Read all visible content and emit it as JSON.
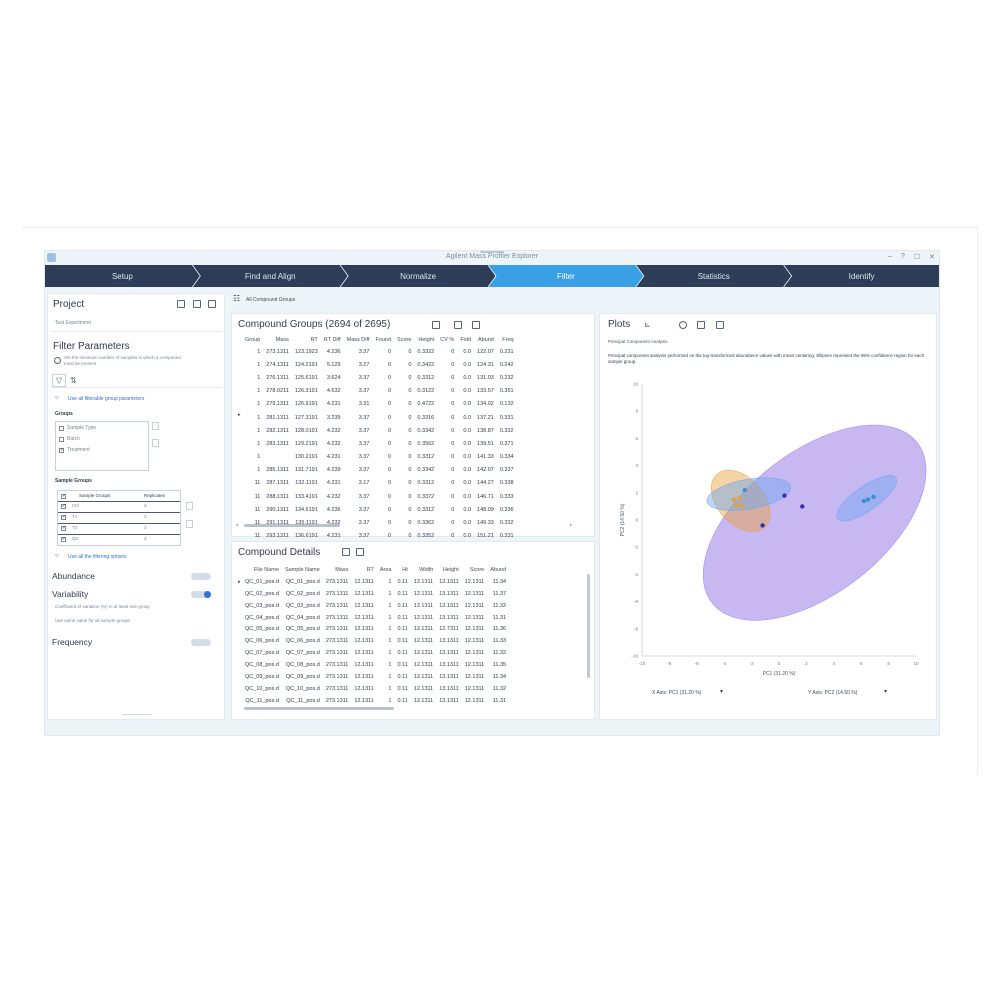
{
  "app": {
    "title": "Agilent Mass Profiler Explorer"
  },
  "window_controls": [
    "–",
    "?",
    "☐",
    "✕"
  ],
  "steps": [
    {
      "label": "Setup",
      "active": false
    },
    {
      "label": "Find and Align",
      "active": false
    },
    {
      "label": "Normalize",
      "active": false
    },
    {
      "label": "Filter",
      "active": true
    },
    {
      "label": "Statistics",
      "active": false
    },
    {
      "label": "Identify",
      "active": false
    }
  ],
  "project": {
    "title": "Project",
    "name": "Test Experiment",
    "filter_title": "Filter Parameters",
    "filter_desc": "Set the minimum number of samples in which a compound must be present",
    "group_link": "Use all filterable group parameters",
    "groups_label": "Groups",
    "groups": [
      {
        "label": "Sample Type",
        "checked": false
      },
      {
        "label": "Batch",
        "checked": false
      },
      {
        "label": "Treatment",
        "checked": true
      }
    ],
    "sample_groups_label": "Sample Groups",
    "sample_groups_header": [
      "Sample Groups",
      "Replicates"
    ],
    "sample_groups": [
      {
        "name": "Ctrl",
        "reps": "3"
      },
      {
        "name": "T1",
        "reps": "3"
      },
      {
        "name": "T2",
        "reps": "3"
      },
      {
        "name": "QC",
        "reps": "3"
      }
    ],
    "filter_link": "Use all the filtering options",
    "abundance": "Abundance",
    "variability": "Variability",
    "variability_desc": "Coefficient of variation (%) in at least one group",
    "variability_desc2": "Use same value for all sample groups",
    "frequency": "Frequency"
  },
  "filter_bar": {
    "label": "All Compound Groups"
  },
  "compound_groups": {
    "title": "Compound Groups (2694 of 2695)",
    "columns": [
      "Group",
      "Mass",
      "RT",
      "RT Diff",
      "Mass Diff",
      "Found",
      "Score",
      "Height",
      "CV %",
      "Fold",
      "Abund",
      "Freq"
    ],
    "rows": [
      [
        "1",
        "273.1311",
        "123.1923",
        "4.236",
        "3.37",
        "0",
        "0",
        "0.3322",
        "0",
        "0.0",
        "122.07",
        "0.231"
      ],
      [
        "1",
        "274.1311",
        "124.2191",
        "5.129",
        "3.27",
        "0",
        "0",
        "0.3422",
        "0",
        "0.0",
        "124.31",
        "0.242"
      ],
      [
        "1",
        "276.1311",
        "125.6191",
        "3.624",
        "3.37",
        "0",
        "0",
        "0.3312",
        "0",
        "0.0",
        "131.03",
        "0.232"
      ],
      [
        "1",
        "278.0211",
        "126.3191",
        "4.632",
        "3.37",
        "0",
        "0",
        "0.3122",
        "0",
        "0.0",
        "133.57",
        "0.351"
      ],
      [
        "1",
        "279.1311",
        "126.9191",
        "4.231",
        "3.31",
        "0",
        "0",
        "0.4722",
        "0",
        "0.0",
        "134.02",
        "0.132"
      ],
      [
        "1",
        "281.1311",
        "127.3191",
        "3.239",
        "3.37",
        "0",
        "0",
        "0.3316",
        "0",
        "0.0",
        "137.21",
        "0.331"
      ],
      [
        "1",
        "282.1311",
        "128.0191",
        "4.232",
        "3.37",
        "0",
        "0",
        "0.3342",
        "0",
        "0.0",
        "138.87",
        "0.332"
      ],
      [
        "1",
        "283.1311",
        "129.2191",
        "4.232",
        "3.37",
        "0",
        "0",
        "0.3562",
        "0",
        "0.0",
        "139.51",
        "0.371"
      ],
      [
        "1",
        "",
        "130.2191",
        "4.231",
        "3.37",
        "0",
        "0",
        "0.3312",
        "0",
        "0.0",
        "141.33",
        "0.334"
      ],
      [
        "1",
        "285.1311",
        "131.7191",
        "4.239",
        "3.37",
        "0",
        "0",
        "0.3342",
        "0",
        "0.0",
        "142.07",
        "0.337"
      ],
      [
        "11",
        "287.1311",
        "132.1191",
        "4.231",
        "3.17",
        "0",
        "0",
        "0.3312",
        "0",
        "0.0",
        "144.27",
        "0.338"
      ],
      [
        "11",
        "288.1311",
        "133.4191",
        "4.232",
        "3.37",
        "0",
        "0",
        "0.3372",
        "0",
        "0.0",
        "146.71",
        "0.333"
      ],
      [
        "11",
        "290.1311",
        "134.6191",
        "4.236",
        "3.37",
        "0",
        "0",
        "0.3312",
        "0",
        "0.0",
        "148.09",
        "0.336"
      ],
      [
        "11",
        "291.1311",
        "135.1191",
        "4.232",
        "3.37",
        "0",
        "0",
        "0.3362",
        "0",
        "0.0",
        "149.33",
        "0.332"
      ],
      [
        "11",
        "293.1311",
        "136.6191",
        "4.231",
        "3.37",
        "0",
        "0",
        "0.3352",
        "0",
        "0.0",
        "151.21",
        "0.331"
      ]
    ]
  },
  "compound_details": {
    "title": "Compound Details",
    "columns": [
      "File Name",
      "Sample Name",
      "Mass",
      "RT",
      "Area",
      "Ht",
      "Width",
      "Height",
      "Score",
      "Abund"
    ],
    "rows": [
      [
        "QC_01_pos.d",
        "QC_01_pos.d",
        "273.1311",
        "12.1311",
        "1",
        "0.11",
        "12.1311",
        "13.1311",
        "12.1311",
        "11.34"
      ],
      [
        "QC_02_pos.d",
        "QC_02_pos.d",
        "273.1311",
        "12.1311",
        "1",
        "0.11",
        "12.1311",
        "13.1311",
        "12.1311",
        "11.37"
      ],
      [
        "QC_03_pos.d",
        "QC_03_pos.d",
        "273.1311",
        "12.1311",
        "1",
        "0.11",
        "12.1311",
        "13.1311",
        "12.1311",
        "11.32"
      ],
      [
        "QC_04_pos.d",
        "QC_04_pos.d",
        "273.1311",
        "12.1311",
        "1",
        "0.11",
        "12.1311",
        "13.1311",
        "12.1311",
        "11.31"
      ],
      [
        "QC_05_pos.d",
        "QC_05_pos.d",
        "273.1311",
        "12.1311",
        "1",
        "0.11",
        "12.1311",
        "12.7311",
        "12.1311",
        "11.36"
      ],
      [
        "QC_06_pos.d",
        "QC_06_pos.d",
        "273.1311",
        "12.1311",
        "1",
        "0.11",
        "12.1311",
        "13.1311",
        "12.1311",
        "11.33"
      ],
      [
        "QC_07_pos.d",
        "QC_07_pos.d",
        "273.1311",
        "12.1311",
        "1",
        "0.11",
        "12.1311",
        "13.1311",
        "12.1311",
        "11.32"
      ],
      [
        "QC_08_pos.d",
        "QC_08_pos.d",
        "273.1311",
        "12.1311",
        "1",
        "0.11",
        "12.1311",
        "13.1311",
        "12.1311",
        "11.35"
      ],
      [
        "QC_09_pos.d",
        "QC_09_pos.d",
        "273.1311",
        "12.1311",
        "1",
        "0.11",
        "12.1311",
        "13.1311",
        "12.1311",
        "11.34"
      ],
      [
        "QC_10_pos.d",
        "QC_10_pos.d",
        "273.1311",
        "12.1311",
        "1",
        "0.11",
        "12.1311",
        "13.1311",
        "12.1311",
        "11.32"
      ],
      [
        "QC_11_pos.d",
        "QC_11_pos.d",
        "273.1311",
        "12.1311",
        "1",
        "0.11",
        "12.1311",
        "13.1311",
        "12.1311",
        "11.31"
      ]
    ]
  },
  "plots": {
    "title": "Plots",
    "subtitle": "Principal Component Analysis",
    "description": "Principal component analysis performed on the log-transformed abundance values with mean centering. Ellipses represent the 95% confidence region for each sample group.",
    "xlabel": "PC1 (31.20 %)",
    "ylabel": "PC2 (14.50 %)",
    "x_selector": "X Axis: PC1 (31.20 %)",
    "y_selector": "Y Axis: PC2 (14.50 %)"
  },
  "chart_data": {
    "type": "scatter",
    "title": "",
    "xlabel": "PC1 (31.20 %)",
    "ylabel": "PC2 (14.50 %)",
    "xlim": [
      -10,
      10
    ],
    "ylim": [
      -10,
      10
    ],
    "x_ticks": [
      -10,
      -8,
      -6,
      -4,
      -2,
      0,
      2,
      4,
      6,
      8,
      10
    ],
    "y_ticks": [
      -10,
      -8,
      -6,
      -4,
      -2,
      0,
      2,
      4,
      6,
      8,
      10
    ],
    "grid": false,
    "series": [
      {
        "color": "#e8a03a",
        "points": [
          [
            -3.3,
            1.5
          ],
          [
            -3.1,
            1.1
          ],
          [
            -2.7,
            1.0
          ],
          [
            -2.9,
            1.6
          ]
        ]
      },
      {
        "color": "#3a8fd6",
        "points": [
          [
            -2.5,
            2.2
          ],
          [
            6.2,
            1.4
          ],
          [
            6.5,
            1.5
          ],
          [
            6.9,
            1.7
          ]
        ]
      },
      {
        "color": "#3b2fa6",
        "points": [
          [
            -1.2,
            -0.4
          ],
          [
            0.4,
            1.8
          ],
          [
            1.7,
            1.0
          ]
        ]
      }
    ],
    "ellipses": [
      {
        "color": "#9b7de8",
        "cx": 2.6,
        "cy": -0.2,
        "rx": 9.5,
        "ry": 5.2,
        "angle_deg": 38
      },
      {
        "color": "#e8a03a",
        "cx": -2.8,
        "cy": 1.4,
        "rx": 2.6,
        "ry": 1.7,
        "angle_deg": -48
      },
      {
        "color": "#6aa7ef",
        "cx": -2.2,
        "cy": 1.9,
        "rx": 3.1,
        "ry": 1.1,
        "angle_deg": 10
      },
      {
        "color": "#6aa7ef",
        "cx": 6.4,
        "cy": 1.6,
        "rx": 2.6,
        "ry": 0.9,
        "angle_deg": 35
      }
    ]
  }
}
